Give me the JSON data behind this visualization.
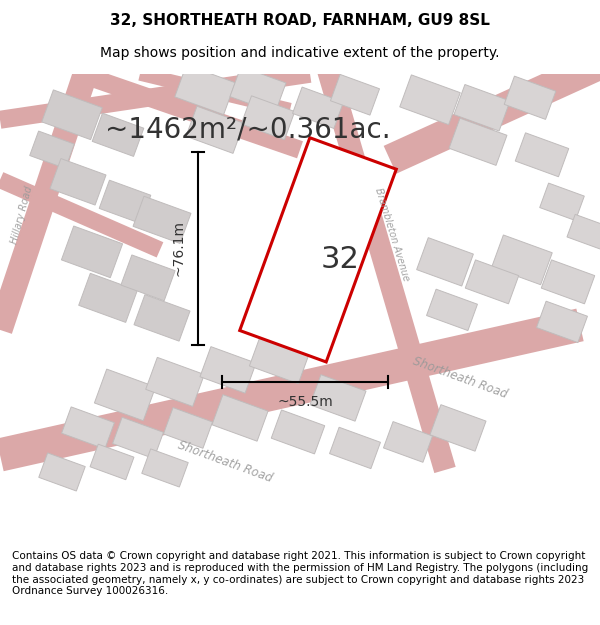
{
  "title": "32, SHORTHEATH ROAD, FARNHAM, GU9 8SL",
  "subtitle": "Map shows position and indicative extent of the property.",
  "area_text": "~1462m²/~0.361ac.",
  "property_label": "32",
  "dim_vertical": "~76.1m",
  "dim_horizontal": "~55.5m",
  "footer_text": "Contains OS data © Crown copyright and database right 2021. This information is subject to Crown copyright and database rights 2023 and is reproduced with the permission of HM Land Registry. The polygons (including the associated geometry, namely x, y co-ordinates) are subject to Crown copyright and database rights 2023 Ordnance Survey 100026316.",
  "road_color": "#dba8a8",
  "block_color": "#d0cccc",
  "property_polygon_color": "#cc0000",
  "title_fontsize": 11,
  "subtitle_fontsize": 10,
  "area_fontsize": 20,
  "label_fontsize": 22,
  "footer_fontsize": 7.5,
  "map_bg_color": "#f0ecec"
}
